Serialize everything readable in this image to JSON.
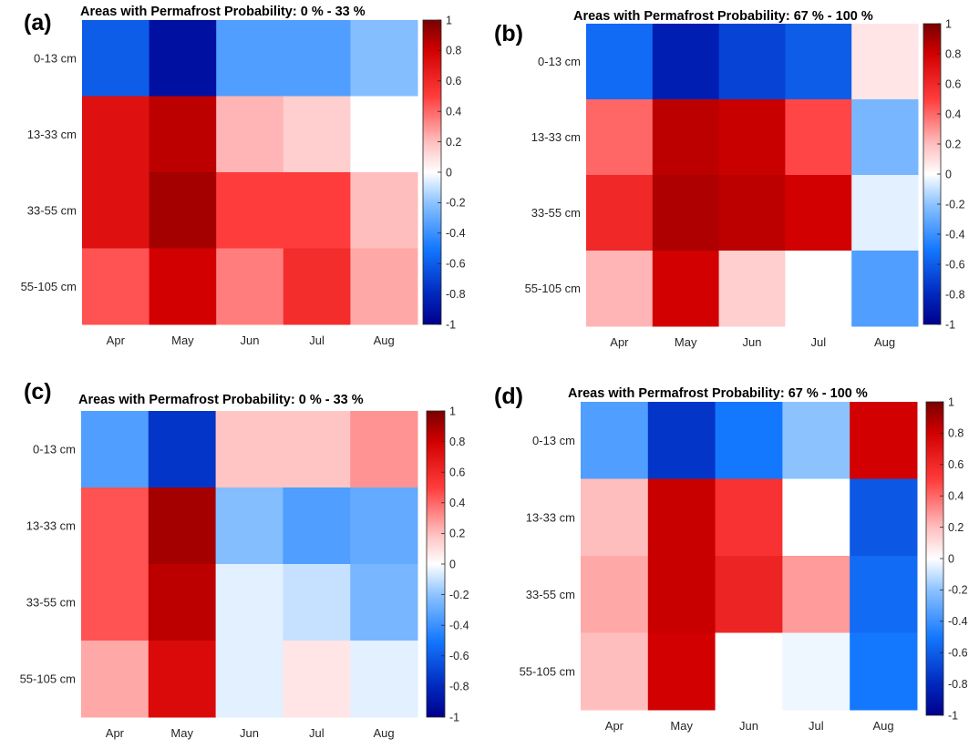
{
  "chart_data": [
    {
      "panel": "(a)",
      "type": "heatmap",
      "title": "Areas with Permafrost Probability: 0 % - 33 %",
      "x_categories": [
        "Apr",
        "May",
        "Jun",
        "Jul",
        "Aug"
      ],
      "y_categories": [
        "0-13 cm",
        "13-33 cm",
        "33-55 cm",
        "55-105 cm"
      ],
      "values": [
        [
          -0.6,
          -0.92,
          -0.35,
          -0.35,
          -0.22
        ],
        [
          0.72,
          0.85,
          0.22,
          0.15,
          0.0
        ],
        [
          0.72,
          0.9,
          0.5,
          0.5,
          0.2
        ],
        [
          0.45,
          0.8,
          0.35,
          0.58,
          0.25
        ]
      ],
      "clim": [
        -1,
        1
      ],
      "colorbar_ticks": [
        "1",
        "0.8",
        "0.6",
        "0.4",
        "0.2",
        "0",
        "-0.2",
        "-0.4",
        "-0.6",
        "-0.8",
        "-1"
      ],
      "colormap": "blue-white-red"
    },
    {
      "panel": "(b)",
      "type": "heatmap",
      "title": "Areas with Permafrost Probability: 67 % - 100 %",
      "x_categories": [
        "Apr",
        "May",
        "Jun",
        "Jul",
        "Aug"
      ],
      "y_categories": [
        "0-13 cm",
        "13-33 cm",
        "33-55 cm",
        "55-105 cm"
      ],
      "values": [
        [
          -0.55,
          -0.85,
          -0.7,
          -0.6,
          0.08
        ],
        [
          0.4,
          0.85,
          0.82,
          0.48,
          -0.25
        ],
        [
          0.6,
          0.88,
          0.85,
          0.8,
          -0.05
        ],
        [
          0.22,
          0.8,
          0.15,
          0.0,
          -0.35
        ]
      ],
      "clim": [
        -1,
        1
      ],
      "colorbar_ticks": [
        "1",
        "0.8",
        "0.6",
        "0.4",
        "0.2",
        "0",
        "-0.2",
        "-0.4",
        "-0.6",
        "-0.8",
        "-1"
      ],
      "colormap": "blue-white-red"
    },
    {
      "panel": "(c)",
      "type": "heatmap",
      "title": "Areas with Permafrost Probability: 0 % - 33 %",
      "x_categories": [
        "Apr",
        "May",
        "Jun",
        "Jul",
        "Aug"
      ],
      "y_categories": [
        "0-13 cm",
        "13-33 cm",
        "33-55 cm",
        "55-105 cm"
      ],
      "values": [
        [
          -0.35,
          -0.75,
          0.18,
          0.18,
          0.3
        ],
        [
          0.45,
          0.9,
          -0.22,
          -0.35,
          -0.3
        ],
        [
          0.45,
          0.85,
          -0.05,
          -0.1,
          -0.25
        ],
        [
          0.25,
          0.75,
          -0.05,
          0.08,
          -0.05
        ]
      ],
      "clim": [
        -1,
        1
      ],
      "colorbar_ticks": [
        "1",
        "0.8",
        "0.6",
        "0.4",
        "0.2",
        "0",
        "-0.2",
        "-0.4",
        "-0.6",
        "-0.8",
        "-1"
      ],
      "colormap": "blue-white-red"
    },
    {
      "panel": "(d)",
      "type": "heatmap",
      "title": "Areas with Permafrost Probability: 67 % - 100 %",
      "x_categories": [
        "Apr",
        "May",
        "Jun",
        "Jul",
        "Aug"
      ],
      "y_categories": [
        "0-13 cm",
        "13-33 cm",
        "33-55 cm",
        "55-105 cm"
      ],
      "values": [
        [
          -0.35,
          -0.75,
          -0.5,
          -0.2,
          0.8
        ],
        [
          0.2,
          0.82,
          0.55,
          0.0,
          -0.62
        ],
        [
          0.25,
          0.82,
          0.62,
          0.28,
          -0.55
        ],
        [
          0.2,
          0.8,
          0.0,
          -0.03,
          -0.5
        ]
      ],
      "clim": [
        -1,
        1
      ],
      "colorbar_ticks": [
        "1",
        "0.8",
        "0.6",
        "0.4",
        "0.2",
        "0",
        "-0.2",
        "-0.4",
        "-0.6",
        "-0.8",
        "-1"
      ],
      "colormap": "blue-white-red"
    }
  ]
}
